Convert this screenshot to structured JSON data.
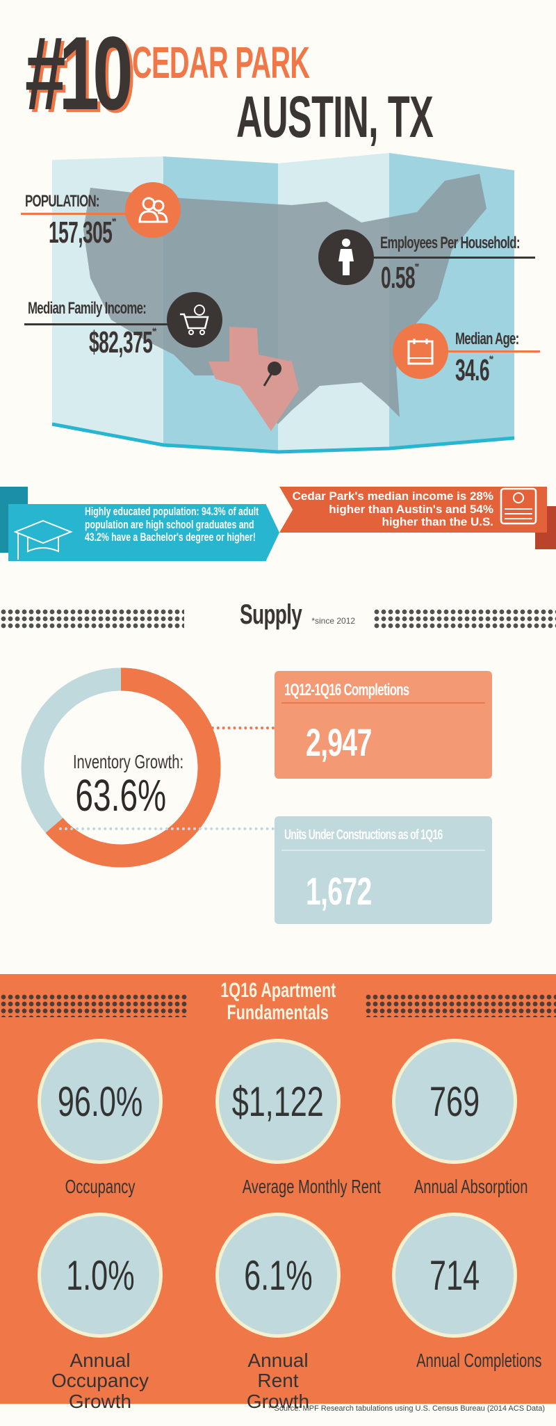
{
  "header": {
    "rank": "#10",
    "city": "CEDAR PARK",
    "metro": "AUSTIN, TX"
  },
  "stats": {
    "population": {
      "label": "POPULATION:",
      "value": "157,305",
      "note": "**",
      "icon": "people-icon"
    },
    "employees": {
      "label": "Employees Per Household:",
      "value": "0.58",
      "note": "**",
      "icon": "businesswoman-icon"
    },
    "income": {
      "label": "Median Family Income:",
      "value": "$82,375",
      "note": "**",
      "icon": "shopping-cart-dollar-icon"
    },
    "age": {
      "label": "Median Age:",
      "value": "34.6",
      "note": "**",
      "icon": "calendar-icon"
    }
  },
  "banners": {
    "education": "Highly educated population: 94.3% of adult population are high school graduates and 43.2% have a Bachelor's degree or higher!",
    "income": "Cedar Park's median income is 28% higher than Austin's and 54% higher than the U.S."
  },
  "supply": {
    "title": "Supply",
    "note": "*since 2012",
    "donut_label": "Inventory Growth:",
    "donut_value": "63.6%",
    "donut_fraction": 0.636,
    "completions": {
      "title": "1Q12-1Q16 Completions",
      "value": "2,947"
    },
    "construction": {
      "title": "Units Under Constructions as of 1Q16",
      "value": "1,672"
    }
  },
  "fundamentals": {
    "title_line1": "1Q16 Apartment",
    "title_line2": "Fundamentals",
    "items": [
      {
        "value": "96.0%",
        "label": "Occupancy"
      },
      {
        "value": "$1,122",
        "label": "Average Monthly Rent"
      },
      {
        "value": "769",
        "label": "Annual Absorption"
      },
      {
        "value": "1.0%",
        "label": "Annual Occupancy Growth"
      },
      {
        "value": "6.1%",
        "label": "Annual Rent Growth"
      },
      {
        "value": "714",
        "label": "Annual Completions"
      }
    ]
  },
  "source": "**Source: MPF Research tabulations using U.S. Census Bureau (2014 ACS Data)",
  "colors": {
    "orange": "#ef7748",
    "dark": "#3b3534",
    "blue": "#27b5cf",
    "light_blue": "#bfd9dc",
    "bg": "#fdfcf6"
  }
}
